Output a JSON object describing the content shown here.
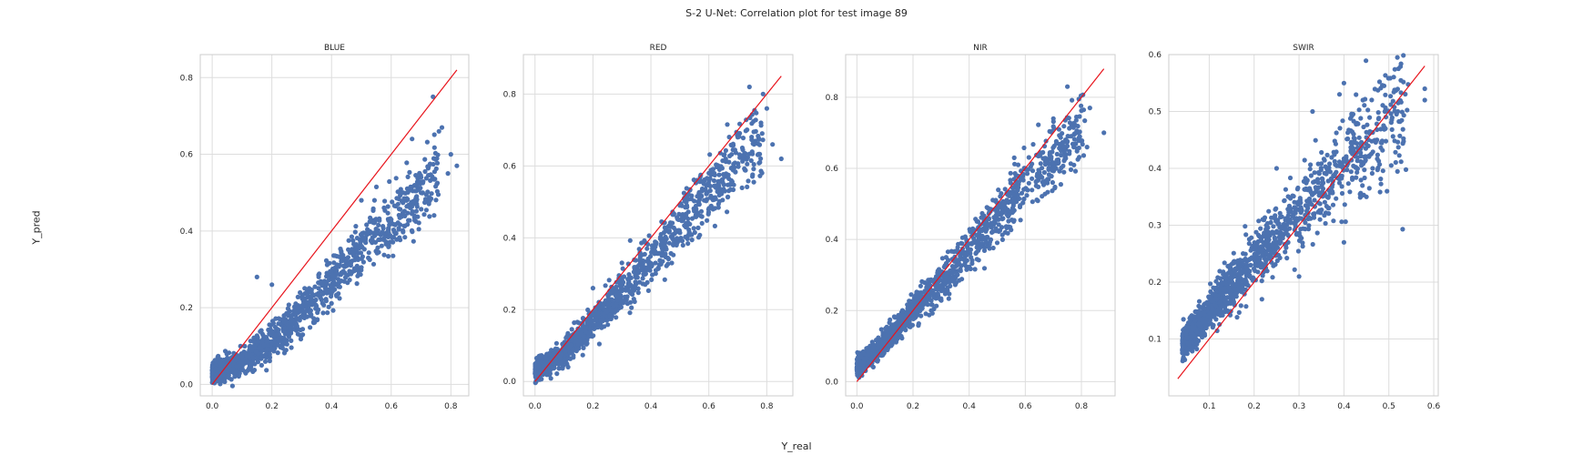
{
  "figure": {
    "title": "S-2 U-Net: Correlation plot for test image 89",
    "xlabel": "Y_real",
    "ylabel": "Y_pred",
    "colors": {
      "points": "#4c72b0",
      "identity_line": "#e8141c",
      "grid": "#dddddd",
      "frame": "#cccccc"
    }
  },
  "chart_data": [
    {
      "type": "scatter",
      "title": "BLUE",
      "xlim": [
        -0.04,
        0.86
      ],
      "ylim": [
        -0.03,
        0.86
      ],
      "xticks": [
        0.0,
        0.2,
        0.4,
        0.6,
        0.8
      ],
      "yticks": [
        0.0,
        0.2,
        0.4,
        0.6,
        0.8
      ],
      "xtick_labels": [
        "0.0",
        "0.2",
        "0.4",
        "0.6",
        "0.8"
      ],
      "ytick_labels": [
        "0.0",
        "0.2",
        "0.4",
        "0.6",
        "0.8"
      ],
      "identity_line": [
        [
          0.0,
          0.0
        ],
        [
          0.82,
          0.82
        ]
      ],
      "trend": [
        [
          0.0,
          0.03
        ],
        [
          0.1,
          0.06
        ],
        [
          0.2,
          0.11
        ],
        [
          0.3,
          0.19
        ],
        [
          0.4,
          0.27
        ],
        [
          0.5,
          0.35
        ],
        [
          0.6,
          0.42
        ],
        [
          0.7,
          0.5
        ],
        [
          0.8,
          0.57
        ]
      ],
      "x_range": [
        0.0,
        0.82
      ],
      "notable_points": [
        [
          0.74,
          0.75
        ],
        [
          0.76,
          0.66
        ],
        [
          0.77,
          0.67
        ],
        [
          0.67,
          0.64
        ],
        [
          0.8,
          0.6
        ],
        [
          0.82,
          0.57
        ],
        [
          0.79,
          0.55
        ],
        [
          0.7,
          0.54
        ],
        [
          0.5,
          0.48
        ],
        [
          0.64,
          0.5
        ],
        [
          0.15,
          0.28
        ],
        [
          0.2,
          0.26
        ]
      ]
    },
    {
      "type": "scatter",
      "title": "RED",
      "xlim": [
        -0.04,
        0.89
      ],
      "ylim": [
        -0.04,
        0.91
      ],
      "xticks": [
        0.0,
        0.2,
        0.4,
        0.6,
        0.8
      ],
      "yticks": [
        0.0,
        0.2,
        0.4,
        0.6,
        0.8
      ],
      "xtick_labels": [
        "0.0",
        "0.2",
        "0.4",
        "0.6",
        "0.8"
      ],
      "ytick_labels": [
        "0.0",
        "0.2",
        "0.4",
        "0.6",
        "0.8"
      ],
      "identity_line": [
        [
          0.0,
          0.0
        ],
        [
          0.85,
          0.85
        ]
      ],
      "trend": [
        [
          0.0,
          0.03
        ],
        [
          0.1,
          0.08
        ],
        [
          0.2,
          0.16
        ],
        [
          0.3,
          0.25
        ],
        [
          0.4,
          0.34
        ],
        [
          0.5,
          0.43
        ],
        [
          0.6,
          0.53
        ],
        [
          0.7,
          0.62
        ],
        [
          0.8,
          0.69
        ],
        [
          0.85,
          0.7
        ]
      ],
      "x_range": [
        0.0,
        0.85
      ],
      "notable_points": [
        [
          0.74,
          0.82
        ],
        [
          0.8,
          0.76
        ],
        [
          0.78,
          0.72
        ],
        [
          0.85,
          0.62
        ],
        [
          0.82,
          0.66
        ],
        [
          0.7,
          0.68
        ],
        [
          0.6,
          0.58
        ],
        [
          0.5,
          0.49
        ],
        [
          0.3,
          0.33
        ],
        [
          0.2,
          0.26
        ]
      ]
    },
    {
      "type": "scatter",
      "title": "NIR",
      "xlim": [
        -0.04,
        0.92
      ],
      "ylim": [
        -0.04,
        0.92
      ],
      "xticks": [
        0.0,
        0.2,
        0.4,
        0.6,
        0.8
      ],
      "yticks": [
        0.0,
        0.2,
        0.4,
        0.6,
        0.8
      ],
      "xtick_labels": [
        "0.0",
        "0.2",
        "0.4",
        "0.6",
        "0.8"
      ],
      "ytick_labels": [
        "0.0",
        "0.2",
        "0.4",
        "0.6",
        "0.8"
      ],
      "identity_line": [
        [
          0.0,
          0.0
        ],
        [
          0.88,
          0.88
        ]
      ],
      "trend": [
        [
          0.0,
          0.04
        ],
        [
          0.1,
          0.11
        ],
        [
          0.2,
          0.2
        ],
        [
          0.3,
          0.28
        ],
        [
          0.4,
          0.37
        ],
        [
          0.5,
          0.46
        ],
        [
          0.6,
          0.55
        ],
        [
          0.7,
          0.63
        ],
        [
          0.8,
          0.7
        ],
        [
          0.88,
          0.72
        ]
      ],
      "x_range": [
        0.0,
        0.88
      ],
      "notable_points": [
        [
          0.75,
          0.83
        ],
        [
          0.7,
          0.74
        ],
        [
          0.83,
          0.77
        ],
        [
          0.88,
          0.7
        ],
        [
          0.82,
          0.66
        ],
        [
          0.6,
          0.6
        ],
        [
          0.45,
          0.43
        ]
      ]
    },
    {
      "type": "scatter",
      "title": "SWIR",
      "xlim": [
        0.01,
        0.61
      ],
      "ylim": [
        0.0,
        0.6
      ],
      "xticks": [
        0.1,
        0.2,
        0.3,
        0.4,
        0.5,
        0.6
      ],
      "yticks": [
        0.1,
        0.2,
        0.3,
        0.4,
        0.5,
        0.6
      ],
      "xtick_labels": [
        "0.1",
        "0.2",
        "0.3",
        "0.4",
        "0.5",
        "0.6"
      ],
      "ytick_labels": [
        "0.1",
        "0.2",
        "0.3",
        "0.4",
        "0.5",
        "0.6"
      ],
      "identity_line": [
        [
          0.03,
          0.03
        ],
        [
          0.58,
          0.58
        ]
      ],
      "trend": [
        [
          0.04,
          0.09
        ],
        [
          0.1,
          0.15
        ],
        [
          0.2,
          0.24
        ],
        [
          0.3,
          0.32
        ],
        [
          0.4,
          0.41
        ],
        [
          0.5,
          0.49
        ],
        [
          0.58,
          0.53
        ]
      ],
      "x_range": [
        0.04,
        0.58
      ],
      "notable_points": [
        [
          0.4,
          0.55
        ],
        [
          0.39,
          0.53
        ],
        [
          0.58,
          0.54
        ],
        [
          0.58,
          0.52
        ],
        [
          0.52,
          0.5
        ],
        [
          0.33,
          0.5
        ],
        [
          0.45,
          0.35
        ],
        [
          0.4,
          0.27
        ],
        [
          0.3,
          0.21
        ],
        [
          0.25,
          0.4
        ]
      ]
    }
  ]
}
